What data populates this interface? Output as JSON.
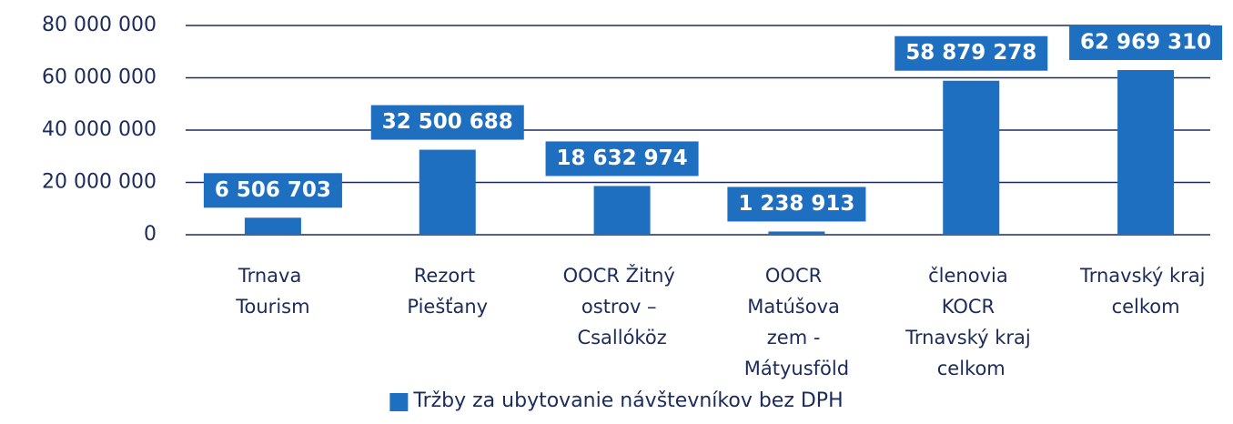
{
  "chart_data": {
    "type": "bar",
    "categories": [
      "Trnava Tourism",
      "Rezort Piešťany",
      "OOCR Žitný ostrov – Csallóköz",
      "OOCR Matúšova zem - Mátyusföld",
      "členovia KOCR Trnavský kraj celkom",
      "Trnavský kraj celkom"
    ],
    "series": [
      {
        "name": "Tržby za ubytovanie návštevníkov bez DPH",
        "color": "#1f6fc1",
        "values": [
          6506703,
          32500688,
          18632974,
          1238913,
          58879278,
          62969310
        ],
        "value_labels": [
          "6 506 703",
          "32 500 688",
          "18 632 974",
          "1 238 913",
          "58 879 278",
          "62 969 310"
        ]
      }
    ],
    "ylim": [
      0,
      80000000
    ],
    "yticks": [
      0,
      {
        "value": 20000000,
        "label": "20 000 000"
      },
      {
        "value": 40000000,
        "label": "40 000 000"
      },
      {
        "value": 60000000,
        "label": "60 000 000"
      },
      {
        "value": 80000000,
        "label": "80 000 000"
      }
    ],
    "grid": true,
    "legend": "bottom"
  }
}
